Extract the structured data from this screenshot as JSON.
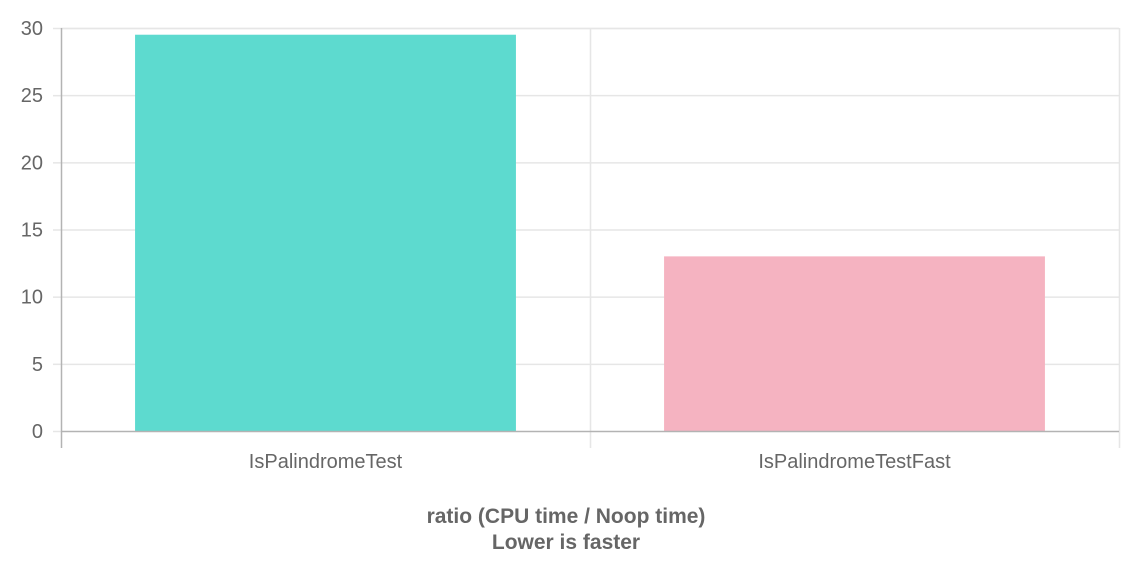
{
  "chart_data": {
    "type": "bar",
    "categories": [
      "IsPalindromeTest",
      "IsPalindromeTestFast"
    ],
    "values": [
      29.5,
      13.0
    ],
    "bar_colors": [
      "#5ddacf",
      "#f5b3c1"
    ],
    "ylim": [
      0,
      30
    ],
    "yticks": [
      0,
      5,
      10,
      15,
      20,
      25,
      30
    ],
    "xlabel_lines": [
      "ratio (CPU time / Noop time)",
      "Lower is faster"
    ],
    "grid": true,
    "legend": "none"
  },
  "colors": {
    "grid": "#e6e6e6",
    "axis": "#b3b3b3",
    "text": "#666666"
  }
}
